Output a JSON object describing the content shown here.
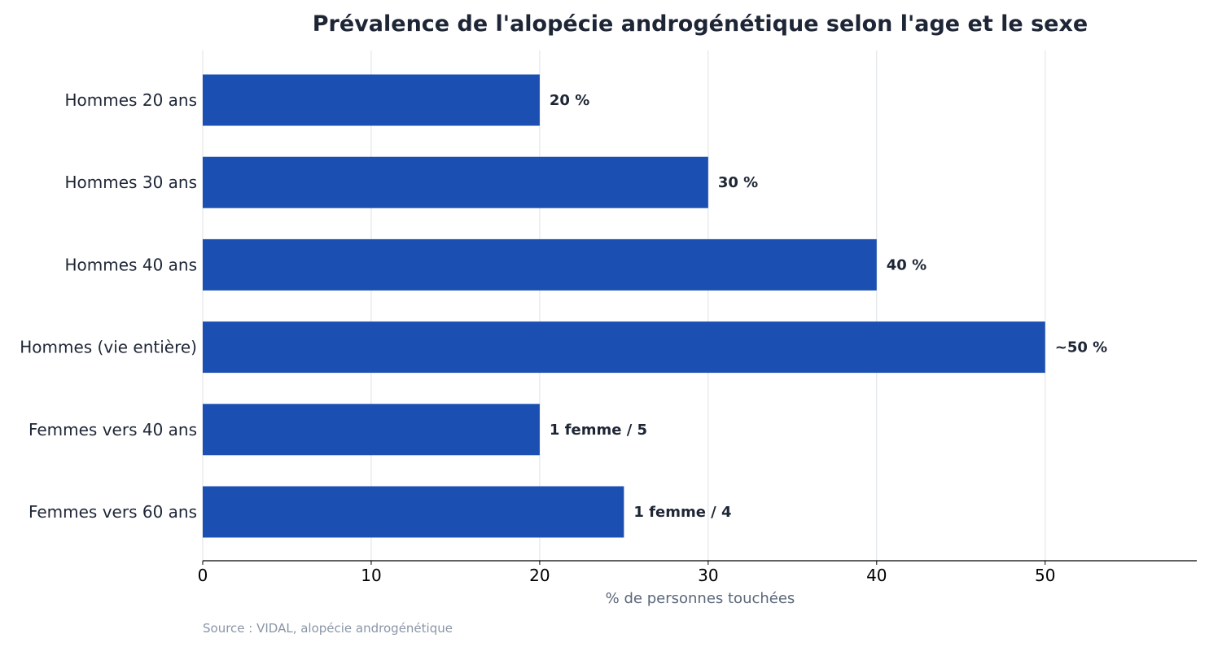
{
  "chart_data": {
    "type": "bar",
    "orientation": "horizontal",
    "title": "Prévalence de l'alopécie androgénétique selon l'age et le sexe",
    "xlabel": "% de personnes touchées",
    "ylabel": "",
    "categories": [
      "Hommes 20 ans",
      "Hommes 30 ans",
      "Hommes 40 ans",
      "Hommes (vie entière)",
      "Femmes vers 40 ans",
      "Femmes vers 60 ans"
    ],
    "values": [
      20,
      30,
      40,
      50,
      20,
      25
    ],
    "value_labels": [
      "20 %",
      "30 %",
      "40 %",
      "~50 %",
      "1 femme / 5",
      "1 femme / 4"
    ],
    "xticks": [
      0,
      10,
      20,
      30,
      40,
      50
    ],
    "xlim": [
      0,
      59
    ],
    "grid": "vertical",
    "bar_color": "#1b4fb1",
    "source": "Source : VIDAL, alopécie androgénétique"
  }
}
